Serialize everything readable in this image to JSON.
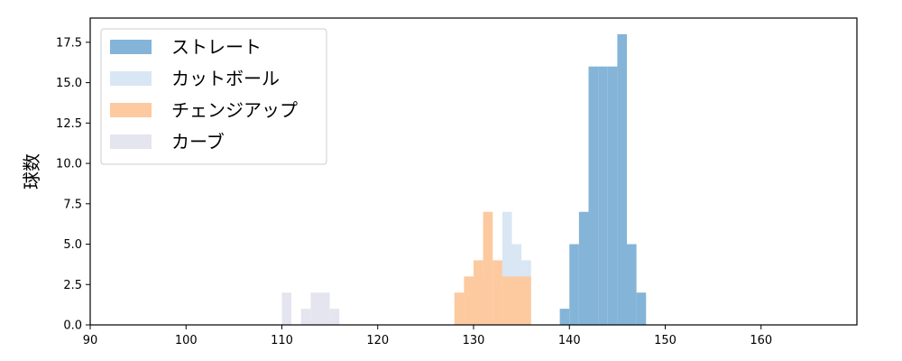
{
  "chart_data": {
    "type": "histogram",
    "title": "",
    "xlabel": "",
    "ylabel": "球数",
    "xlim": [
      90,
      170
    ],
    "ylim": [
      0,
      19
    ],
    "xticks": [
      90,
      100,
      110,
      120,
      130,
      140,
      150,
      160
    ],
    "yticks": [
      "0.0",
      "2.5",
      "5.0",
      "7.5",
      "10.0",
      "12.5",
      "15.0",
      "17.5"
    ],
    "grid": false,
    "legend_position": "top-left",
    "series": [
      {
        "name": "ストレート",
        "color": "#84b4d8",
        "bins": [
          {
            "x0": 139,
            "x1": 140,
            "count": 1
          },
          {
            "x0": 140,
            "x1": 141,
            "count": 5
          },
          {
            "x0": 141,
            "x1": 142,
            "count": 7
          },
          {
            "x0": 142,
            "x1": 143,
            "count": 16
          },
          {
            "x0": 143,
            "x1": 144,
            "count": 16
          },
          {
            "x0": 144,
            "x1": 145,
            "count": 16
          },
          {
            "x0": 145,
            "x1": 146,
            "count": 18
          },
          {
            "x0": 146,
            "x1": 147,
            "count": 5
          },
          {
            "x0": 147,
            "x1": 148,
            "count": 2
          }
        ]
      },
      {
        "name": "カットボール",
        "color": "#d9e6f3",
        "bins": [
          {
            "x0": 130,
            "x1": 131,
            "count": 2
          },
          {
            "x0": 131,
            "x1": 132,
            "count": 3
          },
          {
            "x0": 132,
            "x1": 133,
            "count": 2
          },
          {
            "x0": 133,
            "x1": 134,
            "count": 7
          },
          {
            "x0": 134,
            "x1": 135,
            "count": 5
          },
          {
            "x0": 135,
            "x1": 136,
            "count": 4
          }
        ]
      },
      {
        "name": "チェンジアップ",
        "color": "#fdc99f",
        "bins": [
          {
            "x0": 128,
            "x1": 129,
            "count": 2
          },
          {
            "x0": 129,
            "x1": 130,
            "count": 3
          },
          {
            "x0": 130,
            "x1": 131,
            "count": 4
          },
          {
            "x0": 131,
            "x1": 132,
            "count": 7
          },
          {
            "x0": 132,
            "x1": 133,
            "count": 4
          },
          {
            "x0": 133,
            "x1": 134,
            "count": 3
          },
          {
            "x0": 134,
            "x1": 135,
            "count": 3
          },
          {
            "x0": 135,
            "x1": 136,
            "count": 3
          }
        ]
      },
      {
        "name": "カーブ",
        "color": "#e5e5f0",
        "bins": [
          {
            "x0": 110,
            "x1": 111,
            "count": 2
          },
          {
            "x0": 111,
            "x1": 112,
            "count": 0
          },
          {
            "x0": 112,
            "x1": 113,
            "count": 1
          },
          {
            "x0": 113,
            "x1": 114,
            "count": 2
          },
          {
            "x0": 114,
            "x1": 115,
            "count": 2
          },
          {
            "x0": 115,
            "x1": 116,
            "count": 1
          }
        ]
      }
    ]
  }
}
